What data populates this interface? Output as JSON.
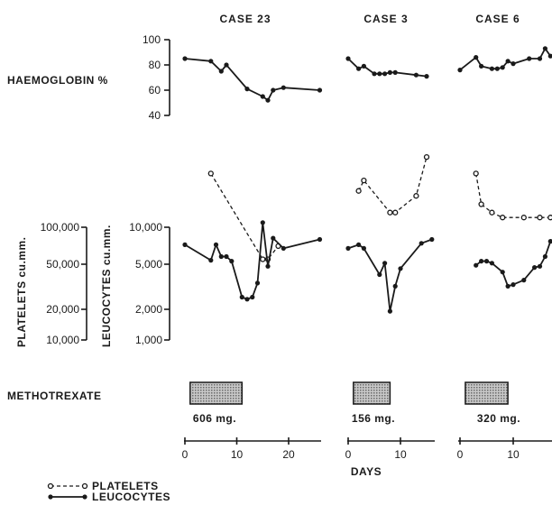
{
  "chart_data": {
    "type": "line",
    "x_label": "DAYS",
    "cases": [
      {
        "name": "CASE 23",
        "dose": "606 mg.",
        "treatment_days": [
          1,
          11
        ],
        "x_ticks": [
          "0",
          "10",
          "20"
        ],
        "haemoglobin": [
          [
            0,
            85
          ],
          [
            5,
            83
          ],
          [
            7,
            75
          ],
          [
            8,
            80
          ],
          [
            12,
            61
          ],
          [
            15,
            55
          ],
          [
            16,
            52
          ],
          [
            17,
            60
          ],
          [
            19,
            62
          ],
          [
            26,
            60
          ]
        ],
        "platelets": [
          [
            5,
            300000
          ],
          [
            15,
            52000
          ],
          [
            16,
            52000
          ],
          [
            18,
            68000
          ]
        ],
        "leucocytes": [
          [
            0,
            7000
          ],
          [
            5,
            5100
          ],
          [
            6,
            7000
          ],
          [
            7,
            5500
          ],
          [
            8,
            5500
          ],
          [
            9,
            5000
          ],
          [
            11,
            2400
          ],
          [
            12,
            2300
          ],
          [
            13,
            2400
          ],
          [
            14,
            3200
          ],
          [
            15,
            11000
          ],
          [
            16,
            4500
          ],
          [
            17,
            8000
          ],
          [
            19,
            6500
          ],
          [
            26,
            7800
          ]
        ]
      },
      {
        "name": "CASE 3",
        "dose": "156 mg.",
        "treatment_days": [
          1,
          8
        ],
        "x_ticks": [
          "0",
          "10"
        ],
        "haemoglobin": [
          [
            0,
            85
          ],
          [
            2,
            77
          ],
          [
            3,
            79
          ],
          [
            5,
            73
          ],
          [
            6,
            73
          ],
          [
            7,
            73
          ],
          [
            8,
            74
          ],
          [
            9,
            74
          ],
          [
            13,
            72
          ],
          [
            15,
            71
          ]
        ],
        "platelets": [
          [
            2,
            210000
          ],
          [
            3,
            260000
          ],
          [
            8,
            135000
          ],
          [
            9,
            135000
          ],
          [
            13,
            190000
          ],
          [
            15,
            420000
          ]
        ],
        "leucocytes": [
          [
            0,
            6500
          ],
          [
            2,
            7000
          ],
          [
            3,
            6500
          ],
          [
            6,
            3800
          ],
          [
            7,
            4800
          ],
          [
            8,
            1800
          ],
          [
            9,
            3000
          ],
          [
            10,
            4300
          ],
          [
            14,
            7200
          ],
          [
            16,
            7800
          ]
        ]
      },
      {
        "name": "CASE 6",
        "dose": "320 mg.",
        "treatment_days": [
          1,
          9
        ],
        "x_ticks": [
          "0",
          "10"
        ],
        "haemoglobin": [
          [
            0,
            76
          ],
          [
            3,
            86
          ],
          [
            4,
            79
          ],
          [
            6,
            77
          ],
          [
            7,
            77
          ],
          [
            8,
            78
          ],
          [
            9,
            83
          ],
          [
            10,
            81
          ],
          [
            13,
            85
          ],
          [
            15,
            85
          ],
          [
            16,
            93
          ],
          [
            17,
            87
          ],
          [
            18,
            88
          ]
        ],
        "platelets": [
          [
            3,
            300000
          ],
          [
            4,
            160000
          ],
          [
            6,
            135000
          ],
          [
            8,
            122000
          ],
          [
            12,
            122000
          ],
          [
            15,
            122000
          ],
          [
            17,
            122000
          ]
        ],
        "leucocytes": [
          [
            3,
            4600
          ],
          [
            4,
            5000
          ],
          [
            5,
            5000
          ],
          [
            6,
            4800
          ],
          [
            8,
            4000
          ],
          [
            9,
            3000
          ],
          [
            10,
            3100
          ],
          [
            12,
            3400
          ],
          [
            14,
            4400
          ],
          [
            15,
            4500
          ],
          [
            16,
            5500
          ],
          [
            17,
            7500
          ]
        ]
      }
    ],
    "haemoglobin_axis": {
      "label": "HAEMOGLOBIN %",
      "range": [
        40,
        100
      ],
      "ticks": [
        "100",
        "80",
        "60",
        "40"
      ]
    },
    "platelets_axis": {
      "label": "PLATELETS cu.mm.",
      "scale": "log",
      "ticks": [
        "100,000",
        "50,000",
        "20,000",
        "10,000"
      ]
    },
    "leucocytes_axis": {
      "label": "LEUCOCYTES cu.mm.",
      "scale": "log",
      "ticks": [
        "10,000",
        "5,000",
        "2,000",
        "1,000"
      ]
    },
    "treatment_label": "METHOTREXATE",
    "legend": [
      {
        "name": "PLATELETS",
        "style": "dashed-open"
      },
      {
        "name": "LEUCOCYTES",
        "style": "solid-filled"
      }
    ],
    "colors": {
      "ink": "#1a1a1a",
      "hatch": "#9a9a9a"
    }
  }
}
